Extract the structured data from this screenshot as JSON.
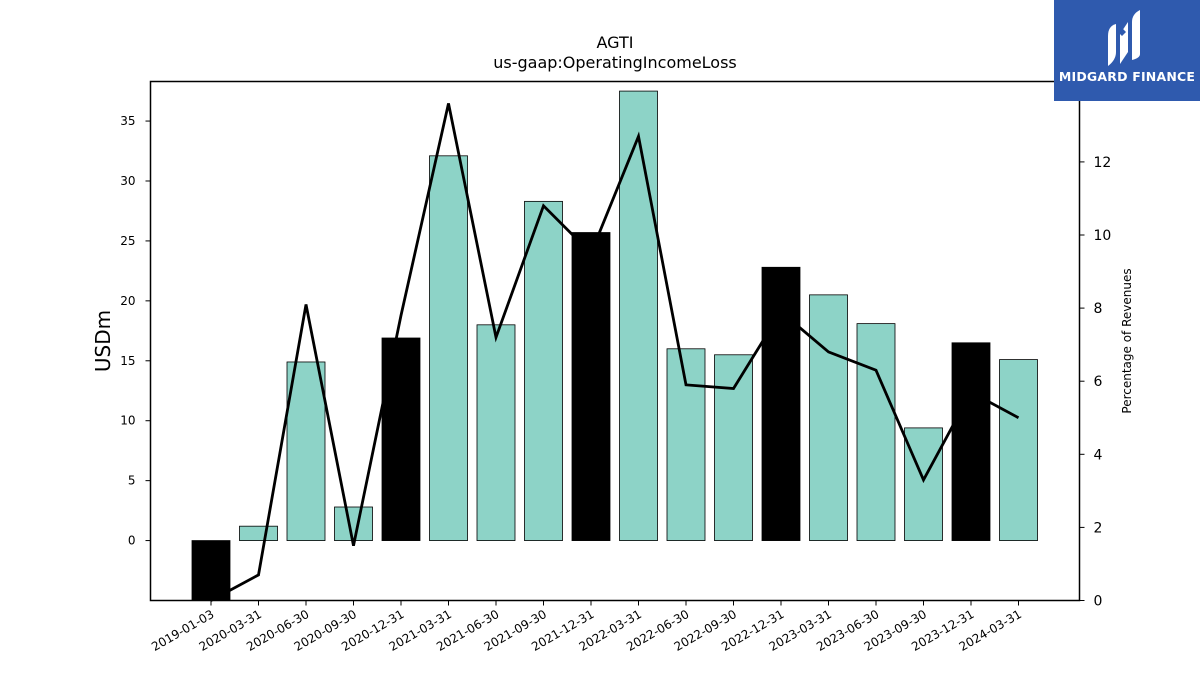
{
  "chart_data": {
    "type": "bar",
    "title": "AGTI",
    "subtitle": "us-gaap:OperatingIncomeLoss",
    "ylabel": "USDm",
    "y2label": "Percentage of Revenues",
    "ylim": [
      -5,
      38.3
    ],
    "y2lim": [
      0,
      14.2
    ],
    "yticks": [
      0,
      5,
      10,
      15,
      20,
      25,
      30,
      35
    ],
    "y2ticks": [
      0,
      2,
      4,
      6,
      8,
      10,
      12
    ],
    "categories": [
      "2019-01-03",
      "2020-03-31",
      "2020-06-30",
      "2020-09-30",
      "2020-12-31",
      "2021-03-31",
      "2021-06-30",
      "2021-09-30",
      "2021-12-31",
      "2022-03-31",
      "2022-06-30",
      "2022-09-30",
      "2022-12-31",
      "2023-03-31",
      "2023-06-30",
      "2023-09-30",
      "2023-12-31",
      "2024-03-31"
    ],
    "series": [
      {
        "values": [
          -5.0,
          1.2,
          14.9,
          2.8,
          16.9,
          32.1,
          18.0,
          28.3,
          25.7,
          37.5,
          16.0,
          15.5,
          22.8,
          20.5,
          18.1,
          9.4,
          16.5,
          15.1
        ],
        "bar_colors": [
          "#000000",
          "#8dd3c7",
          "#8dd3c7",
          "#8dd3c7",
          "#000000",
          "#8dd3c7",
          "#8dd3c7",
          "#8dd3c7",
          "#000000",
          "#8dd3c7",
          "#8dd3c7",
          "#8dd3c7",
          "#000000",
          "#8dd3c7",
          "#8dd3c7",
          "#8dd3c7",
          "#000000",
          "#8dd3c7"
        ]
      },
      {
        "axis": "right",
        "line_color": "#000000",
        "values": [
          0.0,
          0.7,
          8.1,
          1.5,
          7.8,
          13.6,
          7.2,
          10.8,
          9.5,
          12.7,
          5.9,
          5.8,
          7.9,
          6.8,
          6.3,
          3.3,
          5.7,
          5.0
        ]
      }
    ],
    "grid": false,
    "legend": "none"
  },
  "logo": {
    "text": "MIDGARD FINANCE",
    "background": "#2f5aae"
  }
}
